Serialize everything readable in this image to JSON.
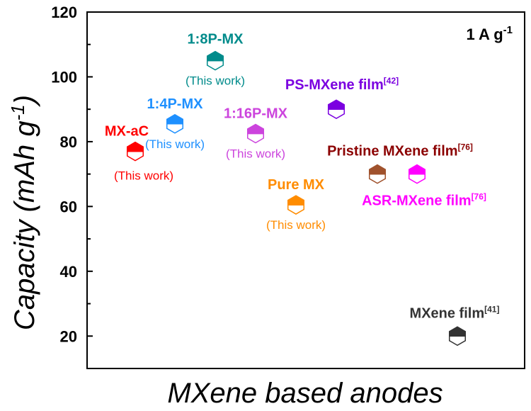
{
  "chart_data": {
    "type": "scatter",
    "xlabel": "MXene based anodes",
    "ylabel": "Capacity (mAh g",
    "ylabel_sup": "-1",
    "ylabel_close": ")",
    "ylim": [
      10,
      120
    ],
    "yticks": [
      20,
      40,
      60,
      80,
      100,
      120
    ],
    "annotation": {
      "text": "1 A g",
      "sup": "-1"
    },
    "points": [
      {
        "name": "MX-aC",
        "ref": "",
        "sub": "(This work)",
        "x": 1,
        "y": 77,
        "color": "#ff0000",
        "label_pos": "left"
      },
      {
        "name": "1:4P-MX",
        "ref": "",
        "sub": "(This work)",
        "x": 2,
        "y": 85.5,
        "color": "#1e90ff",
        "label_pos": "center"
      },
      {
        "name": "1:8P-MX",
        "ref": "",
        "sub": "(This work)",
        "x": 3,
        "y": 105,
        "color": "#008b8b",
        "label_pos": "center"
      },
      {
        "name": "1:16P-MX",
        "ref": "",
        "sub": "(This work)",
        "x": 4,
        "y": 82.5,
        "color": "#cc44dd",
        "label_pos": "center"
      },
      {
        "name": "Pure MX",
        "ref": "",
        "sub": "(This work)",
        "x": 5,
        "y": 60.5,
        "color": "#ff8c00",
        "label_pos": "center"
      },
      {
        "name": "PS-MXene film",
        "ref": "[42]",
        "sub": "",
        "x": 6,
        "y": 90,
        "color": "#7b00e0",
        "label_pos": "center"
      },
      {
        "name": "Pristine MXene film",
        "ref": "[76]",
        "sub": "",
        "x": 7,
        "y": 70,
        "color": "#a0522d",
        "label_color": "#8b0000",
        "label_pos": "center"
      },
      {
        "name": "ASR-MXene film",
        "ref": "[76]",
        "sub": "",
        "x": 8,
        "y": 70,
        "color": "#ff00ff",
        "label_pos": "below"
      },
      {
        "name": "MXene film",
        "ref": "[41]",
        "sub": "",
        "x": 9,
        "y": 20,
        "color": "#333333",
        "label_pos": "center"
      }
    ]
  }
}
